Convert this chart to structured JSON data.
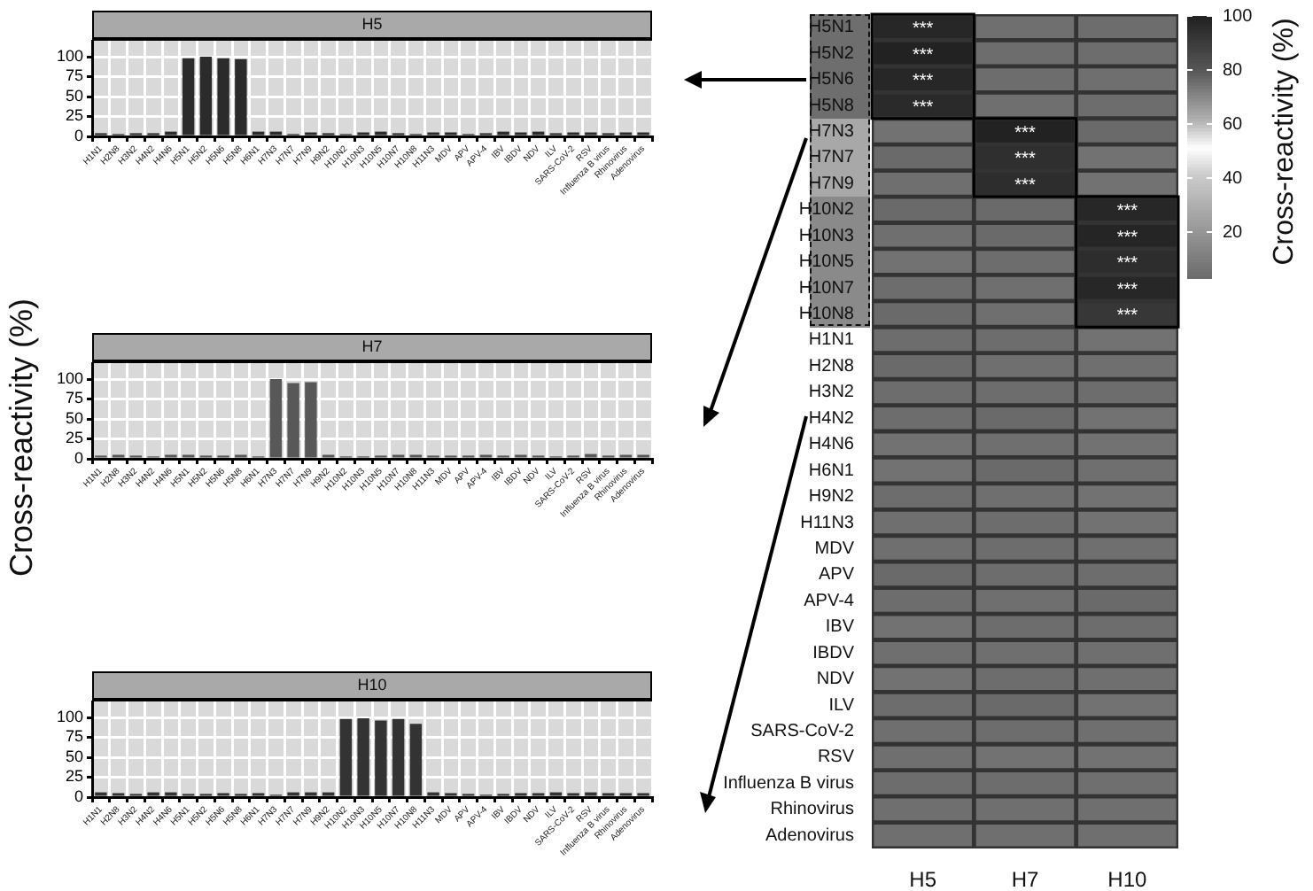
{
  "chart_data": [
    {
      "type": "bar",
      "title": "H5",
      "categories": [
        "H1N1",
        "H2N8",
        "H3N2",
        "H4N2",
        "H4N6",
        "H5N1",
        "H5N2",
        "H5N6",
        "H5N8",
        "H6N1",
        "H7N3",
        "H7N7",
        "H7N9",
        "H9N2",
        "H10N2",
        "H10N3",
        "H10N5",
        "H10N7",
        "H10N8",
        "H11N3",
        "MDV",
        "APV",
        "APV-4",
        "IBV",
        "IBDV",
        "NDV",
        "ILV",
        "SARS-CoV-2",
        "RSV",
        "Influenza B virus",
        "Rhinovirus",
        "Adenovirus"
      ],
      "values": [
        4,
        3,
        4,
        4,
        6,
        98,
        100,
        98,
        97,
        6,
        6,
        3,
        5,
        4,
        3,
        5,
        6,
        4,
        3,
        5,
        5,
        3,
        4,
        6,
        5,
        6,
        4,
        5,
        5,
        4,
        5,
        5
      ],
      "color": "#2b2b2b",
      "ylim": [
        0,
        120
      ],
      "yticks": [
        0,
        25,
        50,
        75,
        100
      ],
      "grid": true,
      "legend": false
    },
    {
      "type": "bar",
      "title": "H7",
      "ylabel": "Cross-reactivity (%)",
      "categories": [
        "H1N1",
        "H2N8",
        "H3N2",
        "H4N2",
        "H4N6",
        "H5N1",
        "H5N2",
        "H5N6",
        "H5N8",
        "H6N1",
        "H7N3",
        "H7N7",
        "H7N9",
        "H9N2",
        "H10N2",
        "H10N3",
        "H10N5",
        "H10N7",
        "H10N8",
        "H11N3",
        "MDV",
        "APV",
        "APV-4",
        "IBV",
        "IBDV",
        "NDV",
        "ILV",
        "SARS-CoV-2",
        "RSV",
        "Influenza B virus",
        "Rhinovirus",
        "Adenovirus"
      ],
      "values": [
        4,
        5,
        4,
        3,
        5,
        5,
        4,
        4,
        5,
        3,
        100,
        95,
        96,
        5,
        3,
        3,
        4,
        5,
        5,
        4,
        4,
        4,
        5,
        4,
        5,
        4,
        3,
        4,
        6,
        4,
        5,
        5
      ],
      "color": "#585858",
      "ylim": [
        0,
        120
      ],
      "yticks": [
        0,
        25,
        50,
        75,
        100
      ],
      "grid": true,
      "legend": false
    },
    {
      "type": "bar",
      "title": "H10",
      "categories": [
        "H1N1",
        "H2N8",
        "H3N2",
        "H4N2",
        "H4N6",
        "H5N1",
        "H5N2",
        "H5N6",
        "H5N8",
        "H6N1",
        "H7N3",
        "H7N7",
        "H7N9",
        "H9N2",
        "H10N2",
        "H10N3",
        "H10N5",
        "H10N7",
        "H10N8",
        "H11N3",
        "MDV",
        "APV",
        "APV-4",
        "IBV",
        "IBDV",
        "NDV",
        "ILV",
        "SARS-CoV-2",
        "RSV",
        "Influenza B virus",
        "Rhinovirus",
        "Adenovirus"
      ],
      "values": [
        6,
        5,
        4,
        6,
        6,
        4,
        4,
        5,
        4,
        5,
        3,
        6,
        6,
        6,
        98,
        99,
        96,
        98,
        92,
        6,
        5,
        4,
        3,
        4,
        5,
        5,
        6,
        5,
        6,
        5,
        5,
        5
      ],
      "color": "#333333",
      "ylim": [
        0,
        120
      ],
      "yticks": [
        0,
        25,
        50,
        75,
        100
      ],
      "grid": true,
      "legend": false
    },
    {
      "type": "heatmap",
      "clabel": "Cross-reactivity (%)",
      "categories": [
        "H5",
        "H7",
        "H10"
      ],
      "y_categories": [
        "H5N1",
        "H5N2",
        "H5N6",
        "H5N8",
        "H7N3",
        "H7N7",
        "H7N9",
        "H10N2",
        "H10N3",
        "H10N5",
        "H10N7",
        "H10N8",
        "H1N1",
        "H2N8",
        "H3N2",
        "H4N2",
        "H4N6",
        "H6N1",
        "H9N2",
        "H11N3",
        "MDV",
        "APV",
        "APV-4",
        "IBV",
        "IBDV",
        "NDV",
        "ILV",
        "SARS-CoV-2",
        "RSV",
        "Influenza B virus",
        "Rhinovirus",
        "Adenovirus"
      ],
      "cells": [
        [
          98,
          5,
          4
        ],
        [
          100,
          4,
          4
        ],
        [
          98,
          4,
          5
        ],
        [
          97,
          5,
          4
        ],
        [
          6,
          100,
          3
        ],
        [
          3,
          95,
          6
        ],
        [
          5,
          96,
          6
        ],
        [
          3,
          3,
          98
        ],
        [
          5,
          3,
          99
        ],
        [
          6,
          4,
          96
        ],
        [
          4,
          5,
          98
        ],
        [
          3,
          5,
          92
        ],
        [
          4,
          4,
          6
        ],
        [
          3,
          5,
          5
        ],
        [
          4,
          4,
          4
        ],
        [
          4,
          3,
          6
        ],
        [
          6,
          5,
          6
        ],
        [
          6,
          3,
          5
        ],
        [
          4,
          5,
          6
        ],
        [
          5,
          4,
          6
        ],
        [
          5,
          4,
          5
        ],
        [
          3,
          4,
          4
        ],
        [
          4,
          5,
          3
        ],
        [
          6,
          4,
          4
        ],
        [
          5,
          5,
          5
        ],
        [
          6,
          4,
          5
        ],
        [
          4,
          3,
          6
        ],
        [
          5,
          4,
          5
        ],
        [
          5,
          6,
          6
        ],
        [
          4,
          4,
          5
        ],
        [
          5,
          5,
          5
        ],
        [
          5,
          5,
          5
        ]
      ],
      "cell_labels": [
        [
          "***",
          null,
          null
        ],
        [
          "***",
          null,
          null
        ],
        [
          "***",
          null,
          null
        ],
        [
          "***",
          null,
          null
        ],
        [
          null,
          "***",
          null
        ],
        [
          null,
          "***",
          null
        ],
        [
          null,
          "***",
          null
        ],
        [
          null,
          null,
          "***"
        ],
        [
          null,
          null,
          "***"
        ],
        [
          null,
          null,
          "***"
        ],
        [
          null,
          null,
          "***"
        ],
        [
          null,
          null,
          "***"
        ],
        [
          null,
          null,
          null
        ],
        [
          null,
          null,
          null
        ],
        [
          null,
          null,
          null
        ],
        [
          null,
          null,
          null
        ],
        [
          null,
          null,
          null
        ],
        [
          null,
          null,
          null
        ],
        [
          null,
          null,
          null
        ],
        [
          null,
          null,
          null
        ],
        [
          null,
          null,
          null
        ],
        [
          null,
          null,
          null
        ],
        [
          null,
          null,
          null
        ],
        [
          null,
          null,
          null
        ],
        [
          null,
          null,
          null
        ],
        [
          null,
          null,
          null
        ],
        [
          null,
          null,
          null
        ],
        [
          null,
          null,
          null
        ],
        [
          null,
          null,
          null
        ],
        [
          null,
          null,
          null
        ],
        [
          null,
          null,
          null
        ],
        [
          null,
          null,
          null
        ]
      ],
      "clim": [
        3,
        100
      ],
      "cticks": [
        20,
        40,
        60,
        80,
        100
      ]
    }
  ]
}
